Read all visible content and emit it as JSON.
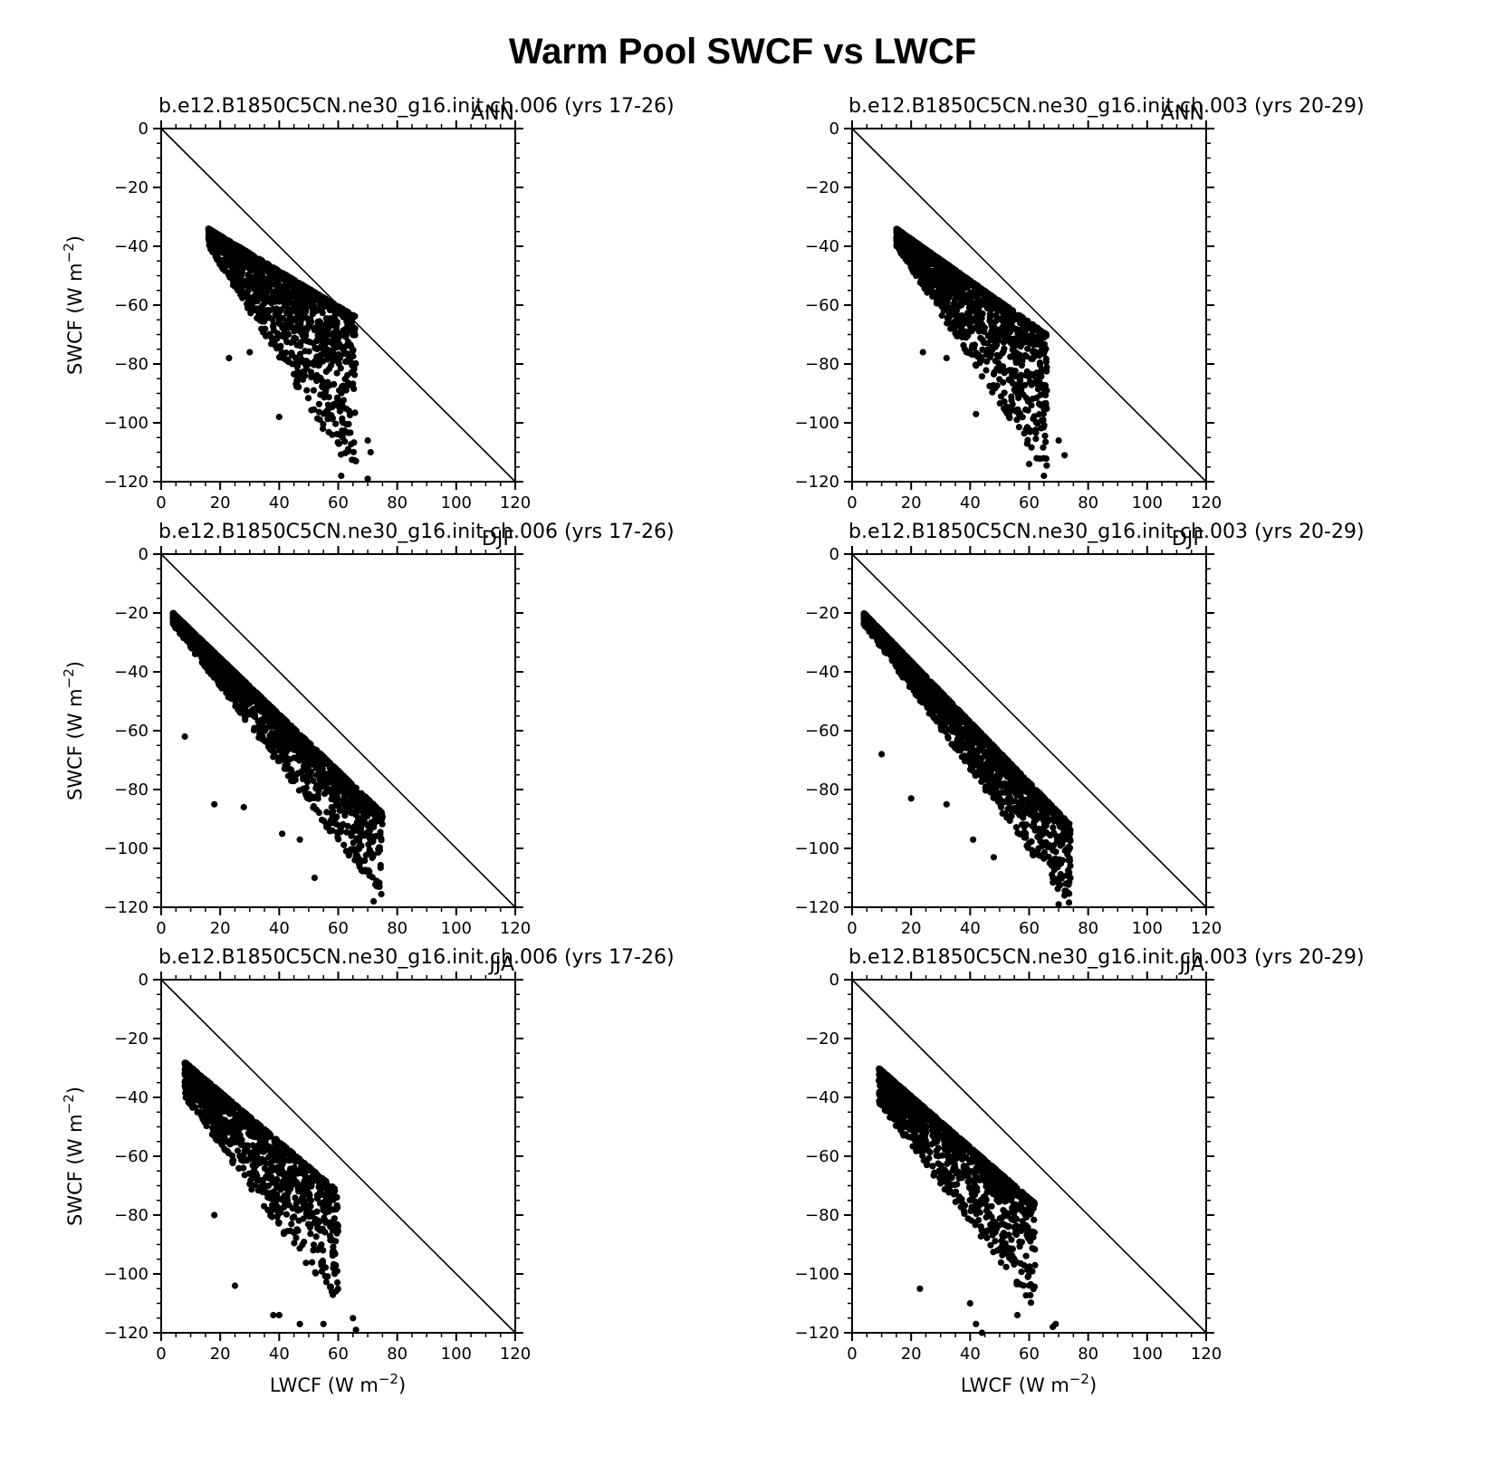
{
  "figure": {
    "title": "Warm Pool SWCF vs LWCF"
  },
  "chart_data": [
    {
      "type": "scatter",
      "title": "b.e12.B1850C5CN.ne30_g16.init.ch.006 (yrs 17-26)",
      "season": "ANN",
      "xlabel": "",
      "ylabel": "SWCF (W m-2)",
      "xlim": [
        0,
        120
      ],
      "ylim": [
        -120,
        0
      ],
      "reference_line": [
        [
          0,
          0
        ],
        [
          120,
          -120
        ]
      ],
      "x_ticks": [
        0,
        20,
        40,
        60,
        80,
        100,
        120
      ],
      "y_ticks": [
        0,
        -20,
        -40,
        -60,
        -80,
        -100,
        -120
      ],
      "grid": false,
      "cloud": {
        "n": 1400,
        "x_range": [
          16,
          66
        ],
        "y_top": [
          -34,
          -64
        ],
        "y_bot": [
          -40,
          -120
        ],
        "outliers": [
          [
            23,
            -78
          ],
          [
            30,
            -76
          ],
          [
            40,
            -98
          ],
          [
            70,
            -106
          ],
          [
            71,
            -110
          ],
          [
            61,
            -118
          ],
          [
            70,
            -119
          ],
          [
            66,
            -113
          ]
        ]
      }
    },
    {
      "type": "scatter",
      "title": "b.e12.B1850C5CN.ne30_g16.init.ch.003 (yrs 20-29)",
      "season": "ANN",
      "xlabel": "",
      "ylabel": "",
      "xlim": [
        0,
        120
      ],
      "ylim": [
        -120,
        0
      ],
      "reference_line": [
        [
          0,
          0
        ],
        [
          120,
          -120
        ]
      ],
      "x_ticks": [
        0,
        20,
        40,
        60,
        80,
        100,
        120
      ],
      "y_ticks": [
        0,
        -20,
        -40,
        -60,
        -80,
        -100,
        -120
      ],
      "grid": false,
      "cloud": {
        "n": 1400,
        "x_range": [
          15,
          66
        ],
        "y_top": [
          -34,
          -70
        ],
        "y_bot": [
          -40,
          -118
        ],
        "outliers": [
          [
            24,
            -76
          ],
          [
            32,
            -78
          ],
          [
            42,
            -97
          ],
          [
            66,
            -89
          ],
          [
            70,
            -106
          ],
          [
            72,
            -111
          ],
          [
            65,
            -118
          ],
          [
            60,
            -114
          ]
        ]
      }
    },
    {
      "type": "scatter",
      "title": "b.e12.B1850C5CN.ne30_g16.init.ch.006 (yrs 17-26)",
      "season": "DJF",
      "xlabel": "",
      "ylabel": "SWCF (W m-2)",
      "xlim": [
        0,
        120
      ],
      "ylim": [
        -120,
        0
      ],
      "reference_line": [
        [
          0,
          0
        ],
        [
          120,
          -120
        ]
      ],
      "x_ticks": [
        0,
        20,
        40,
        60,
        80,
        100,
        120
      ],
      "y_ticks": [
        0,
        -20,
        -40,
        -60,
        -80,
        -100,
        -120
      ],
      "grid": false,
      "cloud": {
        "n": 1700,
        "x_range": [
          4,
          75
        ],
        "y_top": [
          -20,
          -88
        ],
        "y_bot": [
          -24,
          -118
        ],
        "outliers": [
          [
            8,
            -62
          ],
          [
            18,
            -85
          ],
          [
            28,
            -86
          ],
          [
            41,
            -95
          ],
          [
            47,
            -97
          ],
          [
            52,
            -110
          ],
          [
            74,
            -113
          ],
          [
            72,
            -118
          ]
        ]
      }
    },
    {
      "type": "scatter",
      "title": "b.e12.B1850C5CN.ne30_g16.init.ch.003 (yrs 20-29)",
      "season": "DJF",
      "xlabel": "",
      "ylabel": "",
      "xlim": [
        0,
        120
      ],
      "ylim": [
        -120,
        0
      ],
      "reference_line": [
        [
          0,
          0
        ],
        [
          120,
          -120
        ]
      ],
      "x_ticks": [
        0,
        20,
        40,
        60,
        80,
        100,
        120
      ],
      "y_ticks": [
        0,
        -20,
        -40,
        -60,
        -80,
        -100,
        -120
      ],
      "grid": false,
      "cloud": {
        "n": 1700,
        "x_range": [
          4,
          74
        ],
        "y_top": [
          -20,
          -92
        ],
        "y_bot": [
          -24,
          -120
        ],
        "outliers": [
          [
            10,
            -68
          ],
          [
            20,
            -83
          ],
          [
            32,
            -85
          ],
          [
            41,
            -97
          ],
          [
            48,
            -103
          ],
          [
            74,
            -110
          ],
          [
            70,
            -119
          ],
          [
            72,
            -116
          ]
        ]
      }
    },
    {
      "type": "scatter",
      "title": "b.e12.B1850C5CN.ne30_g16.init.ch.006 (yrs 17-26)",
      "season": "JJA",
      "xlabel": "LWCF (W m-2)",
      "ylabel": "SWCF (W m-2)",
      "xlim": [
        0,
        120
      ],
      "ylim": [
        -120,
        0
      ],
      "reference_line": [
        [
          0,
          0
        ],
        [
          120,
          -120
        ]
      ],
      "x_ticks": [
        0,
        20,
        40,
        60,
        80,
        100,
        120
      ],
      "y_ticks": [
        0,
        -20,
        -40,
        -60,
        -80,
        -100,
        -120
      ],
      "grid": false,
      "cloud": {
        "n": 1100,
        "x_range": [
          8,
          60
        ],
        "y_top": [
          -28,
          -72
        ],
        "y_bot": [
          -40,
          -112
        ],
        "outliers": [
          [
            25,
            -104
          ],
          [
            38,
            -114
          ],
          [
            40,
            -114
          ],
          [
            47,
            -117
          ],
          [
            55,
            -117
          ],
          [
            65,
            -115
          ],
          [
            66,
            -119
          ],
          [
            18,
            -80
          ]
        ]
      }
    },
    {
      "type": "scatter",
      "title": "b.e12.B1850C5CN.ne30_g16.init.ch.003 (yrs 20-29)",
      "season": "JJA",
      "xlabel": "LWCF (W m-2)",
      "ylabel": "",
      "xlim": [
        0,
        120
      ],
      "ylim": [
        -120,
        0
      ],
      "reference_line": [
        [
          0,
          0
        ],
        [
          120,
          -120
        ]
      ],
      "x_ticks": [
        0,
        20,
        40,
        60,
        80,
        100,
        120
      ],
      "y_ticks": [
        0,
        -20,
        -40,
        -60,
        -80,
        -100,
        -120
      ],
      "grid": false,
      "cloud": {
        "n": 1200,
        "x_range": [
          9,
          62
        ],
        "y_top": [
          -30,
          -76
        ],
        "y_bot": [
          -42,
          -112
        ],
        "outliers": [
          [
            23,
            -105
          ],
          [
            40,
            -110
          ],
          [
            42,
            -117
          ],
          [
            44,
            -120
          ],
          [
            68,
            -118
          ],
          [
            69,
            -117
          ],
          [
            62,
            -97
          ],
          [
            56,
            -114
          ]
        ]
      }
    }
  ]
}
